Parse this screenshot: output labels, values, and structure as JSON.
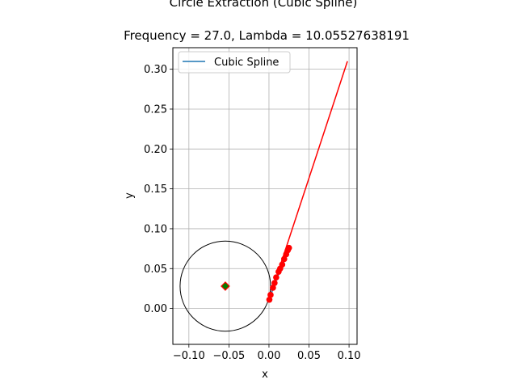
{
  "chart_data": {
    "type": "line",
    "suptitle": "Circle Extraction (Cubic Spline)",
    "title": "Frequency = 27.0, Lambda = 10.05527638191",
    "xlabel": "x",
    "ylabel": "y",
    "xlim": [
      -0.12,
      0.11
    ],
    "ylim": [
      -0.045,
      0.327
    ],
    "xticks": [
      -0.1,
      -0.05,
      0.0,
      0.05,
      0.1
    ],
    "xtick_labels": [
      "−0.10",
      "−0.05",
      "0.00",
      "0.05",
      "0.10"
    ],
    "yticks": [
      0.0,
      0.05,
      0.1,
      0.15,
      0.2,
      0.25,
      0.3
    ],
    "ytick_labels": [
      "0.00",
      "0.05",
      "0.10",
      "0.15",
      "0.20",
      "0.25",
      "0.30"
    ],
    "grid": true,
    "legend": {
      "position": "upper left",
      "entries": [
        "Cubic Spline"
      ]
    },
    "colors": {
      "spline": "#1f77b4",
      "points": "#ff0000",
      "tangent": "#ff0000",
      "circle": "#000000",
      "center_fill": "#008000",
      "center_edge": "#ff0000"
    },
    "series": [
      {
        "name": "Cubic Spline",
        "kind": "line",
        "x": [
          0.0005,
          0.003,
          0.005,
          0.008,
          0.011,
          0.0145,
          0.018,
          0.0215,
          0.024
        ],
        "y": [
          0.011,
          0.018,
          0.026,
          0.033,
          0.04,
          0.049,
          0.057,
          0.066,
          0.076
        ]
      },
      {
        "kind": "scatter",
        "x": [
          0.0005,
          0.002,
          0.005,
          0.007,
          0.009,
          0.012,
          0.014,
          0.0165,
          0.019,
          0.0215,
          0.0235,
          0.025
        ],
        "y": [
          0.011,
          0.017,
          0.026,
          0.032,
          0.039,
          0.046,
          0.05,
          0.055,
          0.062,
          0.068,
          0.073,
          0.076
        ]
      },
      {
        "kind": "tangent-line",
        "x": [
          0.0,
          0.098
        ],
        "y": [
          0.011,
          0.31
        ]
      },
      {
        "kind": "fitted-circle",
        "center": [
          -0.0545,
          0.028
        ],
        "radius": 0.0565
      },
      {
        "kind": "center-marker",
        "x": [
          -0.0545
        ],
        "y": [
          0.028
        ]
      }
    ]
  }
}
